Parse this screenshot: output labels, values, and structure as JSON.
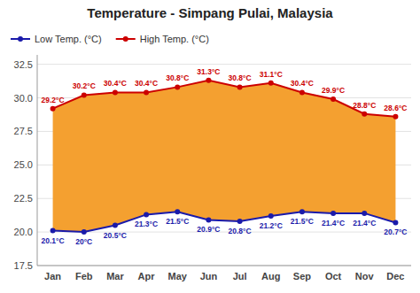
{
  "chart_data": {
    "type": "line",
    "title": "Temperature - Simpang Pulai, Malaysia",
    "categories": [
      "Jan",
      "Feb",
      "Mar",
      "Apr",
      "May",
      "Jun",
      "Jul",
      "Aug",
      "Sep",
      "Oct",
      "Nov",
      "Dec"
    ],
    "series": [
      {
        "name": "Low Temp. (°C)",
        "color": "#1a1aaa",
        "marker": "circle",
        "values": [
          20.1,
          20.0,
          20.5,
          21.3,
          21.5,
          20.9,
          20.8,
          21.2,
          21.5,
          21.4,
          21.4,
          20.7
        ],
        "value_labels": [
          "20.1°C",
          "20°C",
          "20.5°C",
          "21.3°C",
          "21.5°C",
          "20.9°C",
          "20.8°C",
          "21.2°C",
          "21.5°C",
          "21.4°C",
          "21.4°C",
          "20.7°C"
        ]
      },
      {
        "name": "High Temp. (°C)",
        "color": "#cc0000",
        "marker": "circle",
        "values": [
          29.2,
          30.2,
          30.4,
          30.4,
          30.8,
          31.3,
          30.8,
          31.1,
          30.4,
          29.9,
          28.8,
          28.6
        ],
        "value_labels": [
          "29.2°C",
          "30.2°C",
          "30.4°C",
          "30.4°C",
          "30.8°C",
          "31.3°C",
          "30.8°C",
          "31.1°C",
          "30.4°C",
          "29.9°C",
          "28.8°C",
          "28.6°C"
        ]
      }
    ],
    "color": "#f4a030",
    "ylim": [
      17.5,
      33.2
    ],
    "yticks": [
      17.5,
      {
        "value": 20,
        "label": "20.0"
      },
      22.5,
      {
        "value": 25,
        "label": "25.0"
      },
      27.5,
      {
        "value": 30,
        "label": "30.0"
      },
      32.5
    ],
    "grid": true,
    "legend": "upper left",
    "data_labels": true
  }
}
